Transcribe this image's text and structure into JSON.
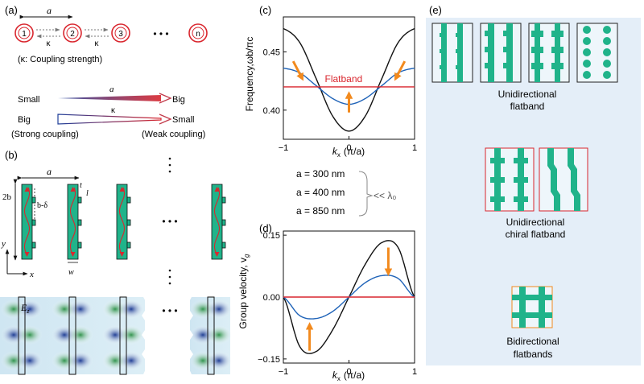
{
  "panel_labels": {
    "a": "(a)",
    "b": "(b)",
    "c": "(c)",
    "d": "(d)",
    "e": "(e)"
  },
  "panel_a": {
    "spacing_label": "a",
    "rings": [
      "1",
      "2",
      "3",
      "n"
    ],
    "kappa": "κ",
    "dots": "• • •",
    "coupling_note": "(κ: Coupling strength)",
    "row1": {
      "left": "Small",
      "mid": "a",
      "right": "Big"
    },
    "row2": {
      "left": "Big",
      "mid": "κ",
      "right": "Small"
    },
    "strong": "(Strong coupling)",
    "weak": "(Weak coupling)"
  },
  "panel_b": {
    "a_label": "a",
    "two_b": "2b",
    "b_minus_delta": "b-δ",
    "t": "t",
    "l": "l",
    "w": "w",
    "y": "y",
    "x": "x",
    "ez": "E",
    "ez_sub": "z",
    "dots": "• • •"
  },
  "panel_c": {
    "ylabel": "Frequency,ωb/πc",
    "xlabel_k": "k",
    "xlabel_sub": "x",
    "xlabel_unit": "(π/a)",
    "flatband_label": "Flatband"
  },
  "panel_d": {
    "ylabel": "Group velocity, v",
    "ylabel_sub": "g",
    "xlabel_k": "k",
    "xlabel_sub": "x",
    "xlabel_unit": "(π/a)"
  },
  "legend": {
    "items": [
      {
        "label": "a = 300 nm",
        "color": "#111111"
      },
      {
        "label": "a = 400 nm",
        "color": "#1f63b8"
      },
      {
        "label": "a = 850 nm",
        "color": "#d9262e"
      }
    ],
    "note": "<< λ₀"
  },
  "panel_e": {
    "cap1": [
      "Unidirectional",
      "flatband"
    ],
    "cap2": [
      "Unidirectional",
      "chiral flatband"
    ],
    "cap3": [
      "Bidirectional",
      "flatbands"
    ]
  },
  "colors": {
    "black": "#111111",
    "blue": "#1f63b8",
    "red": "#d9262e",
    "orange": "#f28a1e",
    "green": "#20b38a",
    "panel_e_bg": "#e4eef8"
  },
  "chart_data": [
    {
      "type": "line",
      "title": "",
      "xlabel": "kx (π/a)",
      "ylabel": "Frequency,ωb/πc",
      "xlim": [
        -1,
        1
      ],
      "ylim": [
        0.375,
        0.48
      ],
      "xticks": [
        -1,
        0,
        1
      ],
      "yticks": [
        0.4,
        0.45
      ],
      "x": [
        -1,
        -0.75,
        -0.5,
        -0.25,
        0,
        0.25,
        0.5,
        0.75,
        1
      ],
      "series": [
        {
          "name": "a = 300 nm",
          "values": [
            0.47,
            0.458,
            0.427,
            0.395,
            0.382,
            0.395,
            0.427,
            0.458,
            0.47
          ]
        },
        {
          "name": "a = 400 nm",
          "values": [
            0.436,
            0.432,
            0.421,
            0.41,
            0.405,
            0.41,
            0.421,
            0.432,
            0.436
          ]
        },
        {
          "name": "a = 850 nm",
          "values": [
            0.42,
            0.42,
            0.42,
            0.42,
            0.42,
            0.42,
            0.42,
            0.42,
            0.42
          ]
        }
      ]
    },
    {
      "type": "line",
      "title": "",
      "xlabel": "kx (π/a)",
      "ylabel": "Group velocity, vg",
      "xlim": [
        -1,
        1
      ],
      "ylim": [
        -0.16,
        0.16
      ],
      "xticks": [
        -1,
        0,
        1
      ],
      "yticks": [
        -0.15,
        0.0,
        0.15
      ],
      "x": [
        -1,
        -0.75,
        -0.5,
        -0.25,
        0,
        0.25,
        0.5,
        0.75,
        1
      ],
      "series": [
        {
          "name": "a = 300 nm",
          "values": [
            0.0,
            -0.12,
            -0.132,
            -0.08,
            0.0,
            0.08,
            0.132,
            0.12,
            0.0
          ]
        },
        {
          "name": "a = 400 nm",
          "values": [
            0.0,
            -0.045,
            -0.052,
            -0.035,
            0.0,
            0.035,
            0.052,
            0.045,
            0.0
          ]
        },
        {
          "name": "a = 850 nm",
          "values": [
            0.0,
            0.0,
            0.0,
            0.0,
            0.0,
            0.0,
            0.0,
            0.0,
            0.0
          ]
        }
      ]
    }
  ]
}
